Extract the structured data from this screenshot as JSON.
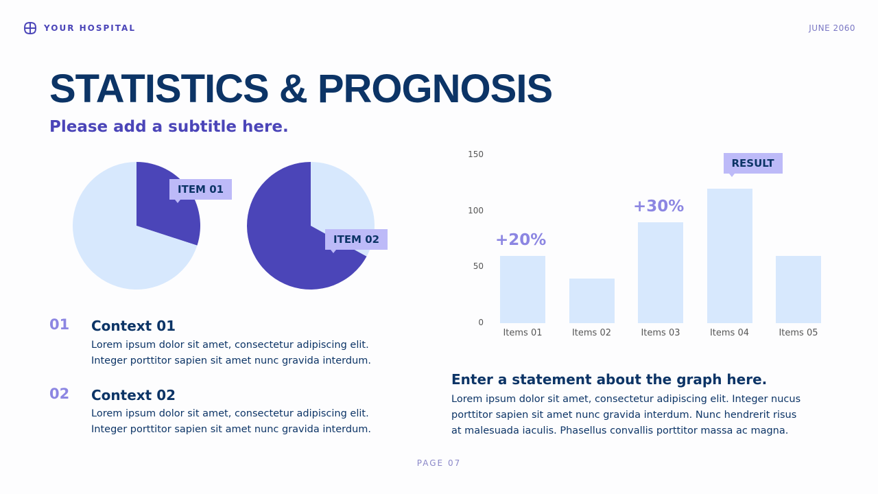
{
  "header": {
    "brand": "YOUR HOSPITAL",
    "date": "JUNE 2060"
  },
  "title": "STATISTICS & PROGNOSIS",
  "subtitle": "Please add a subtitle here.",
  "colors": {
    "dark": "#4b45b8",
    "light": "#d7e8fd",
    "tag": "#bdbaf8",
    "navy": "#0c3466"
  },
  "contexts": [
    {
      "num": "01",
      "title": "Context 01",
      "text1": "Lorem ipsum dolor sit amet, consectetur adipiscing elit.",
      "text2": "Integer porttitor sapien sit amet nunc gravida interdum."
    },
    {
      "num": "02",
      "title": "Context 02",
      "text1": "Lorem ipsum dolor sit amet, consectetur adipiscing elit.",
      "text2": "Integer porttitor sapien sit amet nunc gravida interdum."
    }
  ],
  "statement": {
    "title": "Enter a statement about the graph here.",
    "lines": [
      "Lorem ipsum dolor sit amet, consectetur adipiscing elit. Integer nucus",
      "porttitor sapien sit amet nunc gravida interdum. Nunc hendrerit risus",
      "at malesuada iaculis. Phasellus convallis porttitor massa ac magna."
    ]
  },
  "page": "PAGE 07",
  "chart_data": [
    {
      "type": "pie",
      "label": "ITEM 01",
      "slices": [
        {
          "value": 30,
          "color": "#4b45b8"
        },
        {
          "value": 70,
          "color": "#d7e8fd"
        }
      ]
    },
    {
      "type": "pie",
      "label": "ITEM 02",
      "slices": [
        {
          "value": 33,
          "color": "#d7e8fd"
        },
        {
          "value": 67,
          "color": "#4b45b8"
        }
      ]
    },
    {
      "type": "bar",
      "categories": [
        "Items 01",
        "Items 02",
        "Items 03",
        "Items 04",
        "Items 05"
      ],
      "values": [
        60,
        40,
        90,
        120,
        60
      ],
      "ylim": [
        0,
        150
      ],
      "yticks": [
        0,
        50,
        100,
        150
      ],
      "grid": false,
      "annotations": [
        {
          "category": "Items 01",
          "text": "+20%"
        },
        {
          "category": "Items 03",
          "text": "+30%"
        },
        {
          "category": "Items 04",
          "text": "RESULT"
        }
      ]
    }
  ]
}
